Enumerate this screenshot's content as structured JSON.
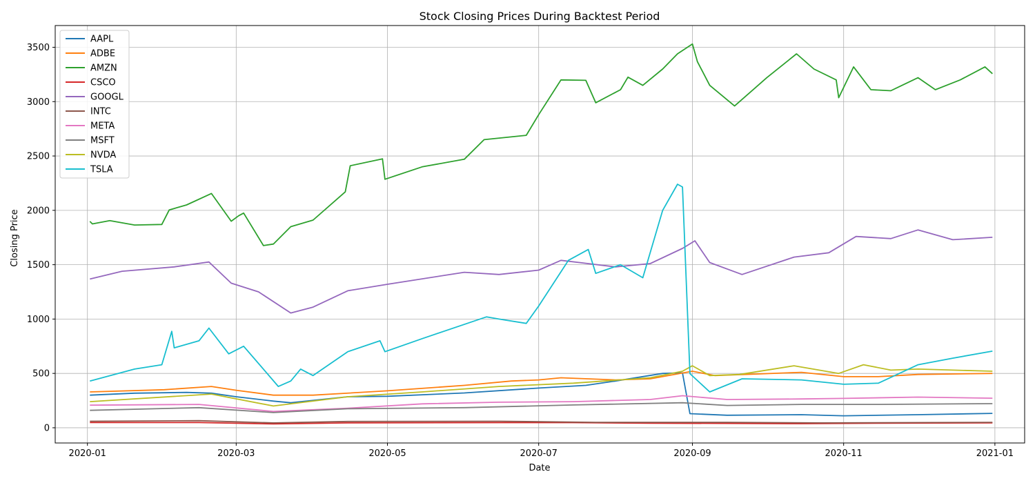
{
  "chart_data": {
    "type": "line",
    "title": "Stock Closing Prices During Backtest Period",
    "xlabel": "Date",
    "ylabel": "Closing Price",
    "xlim": [
      "2019-12-19",
      "2021-01-13"
    ],
    "ylim": [
      -140,
      3700
    ],
    "x_ticks": [
      "2020-01-01",
      "2020-03-01",
      "2020-05-01",
      "2020-07-01",
      "2020-09-01",
      "2020-11-01",
      "2021-01-01"
    ],
    "x_tick_labels": [
      "2020-01",
      "2020-03",
      "2020-05",
      "2020-07",
      "2020-09",
      "2020-11",
      "2021-01"
    ],
    "y_ticks": [
      0,
      500,
      1000,
      1500,
      2000,
      2500,
      3000,
      3500
    ],
    "grid": true,
    "legend_position": "top-left",
    "series": [
      {
        "name": "AAPL",
        "color": "#1f77b4",
        "points": [
          [
            "2020-01-02",
            300
          ],
          [
            "2020-01-20",
            318
          ],
          [
            "2020-02-10",
            325
          ],
          [
            "2020-02-20",
            318
          ],
          [
            "2020-03-01",
            285
          ],
          [
            "2020-03-16",
            245
          ],
          [
            "2020-03-23",
            230
          ],
          [
            "2020-04-15",
            285
          ],
          [
            "2020-05-01",
            290
          ],
          [
            "2020-06-01",
            320
          ],
          [
            "2020-07-01",
            365
          ],
          [
            "2020-07-20",
            390
          ],
          [
            "2020-08-01",
            430
          ],
          [
            "2020-08-20",
            500
          ],
          [
            "2020-08-28",
            505
          ],
          [
            "2020-08-31",
            130
          ],
          [
            "2020-09-15",
            115
          ],
          [
            "2020-10-15",
            120
          ],
          [
            "2020-11-01",
            110
          ],
          [
            "2020-12-01",
            120
          ],
          [
            "2020-12-31",
            132
          ]
        ]
      },
      {
        "name": "ADBE",
        "color": "#ff7f0e",
        "points": [
          [
            "2020-01-02",
            330
          ],
          [
            "2020-02-01",
            350
          ],
          [
            "2020-02-20",
            380
          ],
          [
            "2020-03-01",
            345
          ],
          [
            "2020-03-16",
            300
          ],
          [
            "2020-04-01",
            300
          ],
          [
            "2020-05-01",
            340
          ],
          [
            "2020-06-01",
            390
          ],
          [
            "2020-06-20",
            430
          ],
          [
            "2020-07-01",
            440
          ],
          [
            "2020-07-10",
            460
          ],
          [
            "2020-08-01",
            440
          ],
          [
            "2020-08-15",
            450
          ],
          [
            "2020-09-01",
            520
          ],
          [
            "2020-09-10",
            480
          ],
          [
            "2020-10-15",
            510
          ],
          [
            "2020-11-01",
            470
          ],
          [
            "2020-11-15",
            470
          ],
          [
            "2020-12-01",
            490
          ],
          [
            "2020-12-31",
            500
          ]
        ]
      },
      {
        "name": "AMZN",
        "color": "#2ca02c",
        "points": [
          [
            "2020-01-02",
            1898
          ],
          [
            "2020-01-03",
            1875
          ],
          [
            "2020-01-10",
            1905
          ],
          [
            "2020-01-20",
            1865
          ],
          [
            "2020-01-31",
            1870
          ],
          [
            "2020-02-03",
            2004
          ],
          [
            "2020-02-10",
            2050
          ],
          [
            "2020-02-20",
            2155
          ],
          [
            "2020-02-28",
            1900
          ],
          [
            "2020-03-02",
            1950
          ],
          [
            "2020-03-04",
            1975
          ],
          [
            "2020-03-12",
            1676
          ],
          [
            "2020-03-16",
            1690
          ],
          [
            "2020-03-23",
            1850
          ],
          [
            "2020-04-01",
            1910
          ],
          [
            "2020-04-14",
            2170
          ],
          [
            "2020-04-16",
            2410
          ],
          [
            "2020-04-29",
            2474
          ],
          [
            "2020-04-30",
            2286
          ],
          [
            "2020-05-15",
            2400
          ],
          [
            "2020-06-01",
            2470
          ],
          [
            "2020-06-09",
            2650
          ],
          [
            "2020-06-26",
            2690
          ],
          [
            "2020-07-01",
            2880
          ],
          [
            "2020-07-10",
            3200
          ],
          [
            "2020-07-20",
            3196
          ],
          [
            "2020-07-24",
            2990
          ],
          [
            "2020-08-03",
            3110
          ],
          [
            "2020-08-06",
            3225
          ],
          [
            "2020-08-12",
            3150
          ],
          [
            "2020-08-20",
            3300
          ],
          [
            "2020-08-26",
            3440
          ],
          [
            "2020-09-01",
            3530
          ],
          [
            "2020-09-03",
            3368
          ],
          [
            "2020-09-08",
            3150
          ],
          [
            "2020-09-18",
            2960
          ],
          [
            "2020-10-01",
            3220
          ],
          [
            "2020-10-13",
            3440
          ],
          [
            "2020-10-20",
            3300
          ],
          [
            "2020-10-29",
            3200
          ],
          [
            "2020-10-30",
            3036
          ],
          [
            "2020-11-05",
            3320
          ],
          [
            "2020-11-12",
            3110
          ],
          [
            "2020-11-20",
            3100
          ],
          [
            "2020-12-01",
            3220
          ],
          [
            "2020-12-08",
            3110
          ],
          [
            "2020-12-18",
            3200
          ],
          [
            "2020-12-28",
            3320
          ],
          [
            "2020-12-31",
            3257
          ]
        ]
      },
      {
        "name": "CSCO",
        "color": "#d62728",
        "points": [
          [
            "2020-01-02",
            48
          ],
          [
            "2020-02-15",
            48
          ],
          [
            "2020-03-16",
            35
          ],
          [
            "2020-04-15",
            45
          ],
          [
            "2020-06-15",
            47
          ],
          [
            "2020-07-15",
            47
          ],
          [
            "2020-08-15",
            42
          ],
          [
            "2020-10-15",
            38
          ],
          [
            "2020-11-15",
            42
          ],
          [
            "2020-12-31",
            45
          ]
        ]
      },
      {
        "name": "GOOGL",
        "color": "#9467bd",
        "points": [
          [
            "2020-01-02",
            1368
          ],
          [
            "2020-01-15",
            1440
          ],
          [
            "2020-02-05",
            1480
          ],
          [
            "2020-02-19",
            1525
          ],
          [
            "2020-02-28",
            1330
          ],
          [
            "2020-03-10",
            1250
          ],
          [
            "2020-03-23",
            1056
          ],
          [
            "2020-04-01",
            1110
          ],
          [
            "2020-04-15",
            1260
          ],
          [
            "2020-05-01",
            1320
          ],
          [
            "2020-06-01",
            1430
          ],
          [
            "2020-06-15",
            1410
          ],
          [
            "2020-07-01",
            1450
          ],
          [
            "2020-07-10",
            1540
          ],
          [
            "2020-08-01",
            1480
          ],
          [
            "2020-08-15",
            1510
          ],
          [
            "2020-08-28",
            1650
          ],
          [
            "2020-09-02",
            1720
          ],
          [
            "2020-09-08",
            1520
          ],
          [
            "2020-09-21",
            1410
          ],
          [
            "2020-10-12",
            1570
          ],
          [
            "2020-10-26",
            1610
          ],
          [
            "2020-11-06",
            1760
          ],
          [
            "2020-11-20",
            1740
          ],
          [
            "2020-12-01",
            1820
          ],
          [
            "2020-12-15",
            1730
          ],
          [
            "2020-12-31",
            1752
          ]
        ]
      },
      {
        "name": "INTC",
        "color": "#8c564b",
        "points": [
          [
            "2020-01-02",
            60
          ],
          [
            "2020-02-15",
            65
          ],
          [
            "2020-03-16",
            45
          ],
          [
            "2020-04-15",
            58
          ],
          [
            "2020-06-15",
            60
          ],
          [
            "2020-07-24",
            50
          ],
          [
            "2020-09-15",
            50
          ],
          [
            "2020-10-23",
            45
          ],
          [
            "2020-12-31",
            50
          ]
        ]
      },
      {
        "name": "META",
        "color": "#e377c2",
        "points": [
          [
            "2020-01-02",
            208
          ],
          [
            "2020-02-15",
            215
          ],
          [
            "2020-03-16",
            150
          ],
          [
            "2020-04-15",
            180
          ],
          [
            "2020-05-15",
            220
          ],
          [
            "2020-06-15",
            235
          ],
          [
            "2020-07-15",
            240
          ],
          [
            "2020-08-15",
            260
          ],
          [
            "2020-08-28",
            295
          ],
          [
            "2020-09-15",
            260
          ],
          [
            "2020-10-15",
            265
          ],
          [
            "2020-11-01",
            270
          ],
          [
            "2020-12-01",
            282
          ],
          [
            "2020-12-31",
            272
          ]
        ]
      },
      {
        "name": "MSFT",
        "color": "#7f7f7f",
        "points": [
          [
            "2020-01-02",
            160
          ],
          [
            "2020-02-15",
            185
          ],
          [
            "2020-03-16",
            140
          ],
          [
            "2020-04-15",
            175
          ],
          [
            "2020-06-01",
            185
          ],
          [
            "2020-07-15",
            210
          ],
          [
            "2020-08-28",
            230
          ],
          [
            "2020-09-15",
            205
          ],
          [
            "2020-10-15",
            215
          ],
          [
            "2020-11-15",
            215
          ],
          [
            "2020-12-31",
            222
          ]
        ]
      },
      {
        "name": "NVDA",
        "color": "#bcbd22",
        "points": [
          [
            "2020-01-02",
            240
          ],
          [
            "2020-02-20",
            310
          ],
          [
            "2020-03-16",
            200
          ],
          [
            "2020-04-15",
            285
          ],
          [
            "2020-05-15",
            330
          ],
          [
            "2020-06-15",
            380
          ],
          [
            "2020-07-15",
            410
          ],
          [
            "2020-08-15",
            460
          ],
          [
            "2020-08-28",
            520
          ],
          [
            "2020-09-01",
            570
          ],
          [
            "2020-09-08",
            480
          ],
          [
            "2020-09-20",
            490
          ],
          [
            "2020-10-12",
            570
          ],
          [
            "2020-10-30",
            500
          ],
          [
            "2020-11-09",
            580
          ],
          [
            "2020-11-20",
            530
          ],
          [
            "2020-12-01",
            540
          ],
          [
            "2020-12-31",
            520
          ]
        ]
      },
      {
        "name": "TSLA",
        "color": "#17becf",
        "points": [
          [
            "2020-01-02",
            430
          ],
          [
            "2020-01-20",
            540
          ],
          [
            "2020-01-31",
            580
          ],
          [
            "2020-02-04",
            887
          ],
          [
            "2020-02-05",
            735
          ],
          [
            "2020-02-15",
            800
          ],
          [
            "2020-02-19",
            917
          ],
          [
            "2020-02-27",
            680
          ],
          [
            "2020-03-04",
            750
          ],
          [
            "2020-03-18",
            380
          ],
          [
            "2020-03-23",
            430
          ],
          [
            "2020-03-27",
            540
          ],
          [
            "2020-04-01",
            480
          ],
          [
            "2020-04-15",
            700
          ],
          [
            "2020-04-28",
            800
          ],
          [
            "2020-04-30",
            700
          ],
          [
            "2020-05-15",
            820
          ],
          [
            "2020-06-10",
            1020
          ],
          [
            "2020-06-15",
            1000
          ],
          [
            "2020-06-26",
            960
          ],
          [
            "2020-07-01",
            1120
          ],
          [
            "2020-07-13",
            1540
          ],
          [
            "2020-07-21",
            1640
          ],
          [
            "2020-07-24",
            1420
          ],
          [
            "2020-08-03",
            1500
          ],
          [
            "2020-08-12",
            1380
          ],
          [
            "2020-08-20",
            2000
          ],
          [
            "2020-08-26",
            2240
          ],
          [
            "2020-08-28",
            2215
          ],
          [
            "2020-08-31",
            498
          ],
          [
            "2020-09-08",
            330
          ],
          [
            "2020-09-21",
            450
          ],
          [
            "2020-10-15",
            440
          ],
          [
            "2020-11-01",
            400
          ],
          [
            "2020-11-15",
            410
          ],
          [
            "2020-12-01",
            580
          ],
          [
            "2020-12-15",
            640
          ],
          [
            "2020-12-31",
            705
          ]
        ]
      }
    ]
  }
}
